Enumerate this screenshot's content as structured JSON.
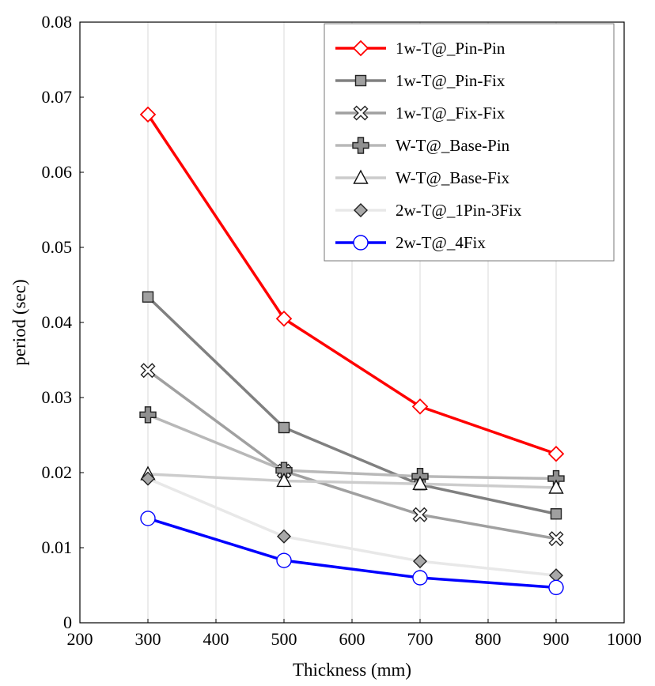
{
  "chart_data": {
    "type": "line",
    "title": "",
    "xlabel": "Thickness (mm)",
    "ylabel": "period (sec)",
    "xlim": [
      200,
      1000
    ],
    "ylim": [
      0,
      0.08
    ],
    "xticks": [
      200,
      300,
      400,
      500,
      600,
      700,
      800,
      900,
      1000
    ],
    "yticks": [
      0,
      0.01,
      0.02,
      0.03,
      0.04,
      0.05,
      0.06,
      0.07,
      0.08
    ],
    "xtick_labels": [
      "200",
      "300",
      "400",
      "500",
      "600",
      "700",
      "800",
      "900",
      "1000"
    ],
    "ytick_labels": [
      "0",
      "0.01",
      "0.02",
      "0.03",
      "0.04",
      "0.05",
      "0.06",
      "0.07",
      "0.08"
    ],
    "grid": "vertical",
    "legend_position": "top-right",
    "x": [
      300,
      500,
      700,
      900
    ],
    "series": [
      {
        "name": "1w-T@_Pin-Pin",
        "values": [
          0.0677,
          0.0405,
          0.0288,
          0.0225
        ],
        "color": "#ff0000",
        "marker": "diamond-open",
        "marker_color": "#ff0000"
      },
      {
        "name": "1w-T@_Pin-Fix",
        "values": [
          0.0434,
          0.026,
          0.0184,
          0.0145
        ],
        "color": "#808080",
        "marker": "square",
        "marker_color": "#a0a0a0"
      },
      {
        "name": "1w-T@_Fix-Fix",
        "values": [
          0.0336,
          0.0202,
          0.0144,
          0.0112
        ],
        "color": "#a0a0a0",
        "marker": "x",
        "marker_color": "#808080"
      },
      {
        "name": "W-T@_Base-Pin",
        "values": [
          0.0277,
          0.0203,
          0.0195,
          0.0192
        ],
        "color": "#b8b8b8",
        "marker": "plus",
        "marker_color": "#909090"
      },
      {
        "name": "W-T@_Base-Fix",
        "values": [
          0.0198,
          0.0189,
          0.0185,
          0.018
        ],
        "color": "#cccccc",
        "marker": "triangle-open",
        "marker_color": "#ffffff"
      },
      {
        "name": "2w-T@_1Pin-3Fix",
        "values": [
          0.0192,
          0.0115,
          0.0082,
          0.0063
        ],
        "color": "#e8e8e8",
        "marker": "diamond",
        "marker_color": "#a8a8a8"
      },
      {
        "name": "2w-T@_4Fix",
        "values": [
          0.0139,
          0.0083,
          0.006,
          0.0047
        ],
        "color": "#0000ff",
        "marker": "circle-open",
        "marker_color": "#0000ff"
      }
    ]
  }
}
